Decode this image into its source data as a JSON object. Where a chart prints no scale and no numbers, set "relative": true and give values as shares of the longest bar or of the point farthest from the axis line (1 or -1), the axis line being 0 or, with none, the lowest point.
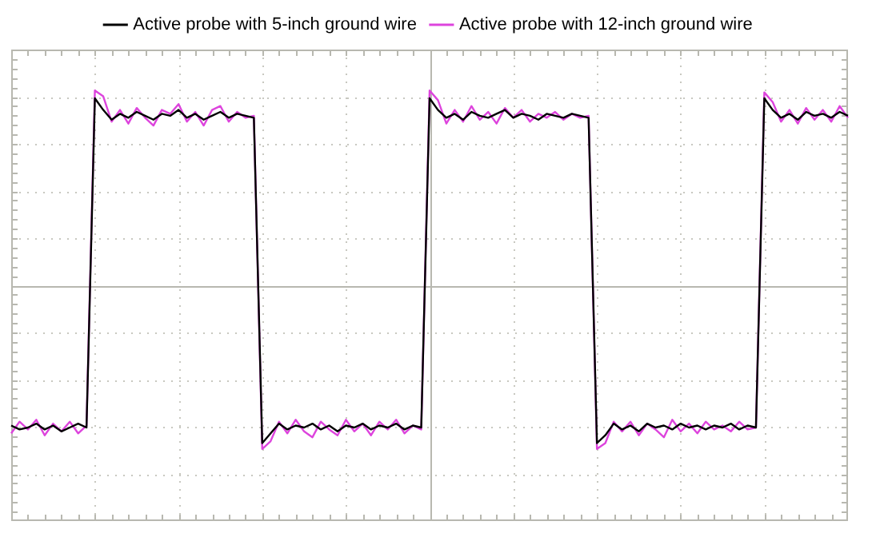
{
  "chart_data": {
    "type": "line",
    "relative": true,
    "grid": true,
    "legend": "top",
    "marker": "none",
    "line_style": "solid",
    "categories": [
      null,
      null,
      null,
      null,
      null,
      null,
      null,
      null,
      null,
      null,
      null,
      null,
      null,
      null,
      null,
      null,
      null,
      null,
      null,
      null,
      null,
      null,
      null,
      null,
      null,
      null,
      null,
      null,
      null,
      null,
      null,
      null,
      null,
      null,
      null,
      null,
      null,
      null,
      null,
      null,
      null,
      null,
      null,
      null,
      null,
      null,
      null,
      null,
      null,
      null,
      null,
      null,
      null,
      null,
      null,
      null,
      null,
      null,
      null,
      null,
      null,
      null,
      null,
      null,
      null,
      null,
      null,
      null,
      null,
      null,
      null,
      null,
      null,
      null,
      null,
      null,
      null,
      null,
      null,
      null,
      null,
      null,
      null,
      null,
      null,
      null,
      null,
      null,
      null,
      null,
      null,
      null,
      null,
      null,
      null,
      null,
      null,
      null,
      null,
      null,
      null
    ],
    "series": [
      {
        "name": "Active probe with 5-inch ground wire",
        "color": "#000000",
        "values": [
          -0.72,
          -0.74,
          -0.73,
          -0.71,
          -0.74,
          -0.72,
          -0.75,
          -0.73,
          -0.71,
          -0.73,
          0.96,
          0.9,
          0.85,
          0.88,
          0.86,
          0.89,
          0.87,
          0.85,
          0.88,
          0.87,
          0.9,
          0.86,
          0.88,
          0.85,
          0.87,
          0.89,
          0.86,
          0.88,
          0.87,
          0.86,
          -0.81,
          -0.76,
          -0.71,
          -0.74,
          -0.72,
          -0.73,
          -0.71,
          -0.74,
          -0.72,
          -0.75,
          -0.72,
          -0.73,
          -0.71,
          -0.74,
          -0.72,
          -0.73,
          -0.71,
          -0.74,
          -0.72,
          -0.73,
          0.96,
          0.9,
          0.86,
          0.88,
          0.85,
          0.89,
          0.87,
          0.86,
          0.88,
          0.9,
          0.86,
          0.88,
          0.87,
          0.85,
          0.88,
          0.87,
          0.86,
          0.88,
          0.87,
          0.86,
          -0.81,
          -0.77,
          -0.71,
          -0.74,
          -0.72,
          -0.75,
          -0.71,
          -0.73,
          -0.72,
          -0.74,
          -0.71,
          -0.73,
          -0.72,
          -0.74,
          -0.72,
          -0.73,
          -0.71,
          -0.74,
          -0.72,
          -0.73,
          0.96,
          0.9,
          0.86,
          0.88,
          0.85,
          0.89,
          0.87,
          0.88,
          0.86,
          0.89,
          0.87
        ]
      },
      {
        "name": "Active probe with 12-inch ground wire",
        "color": "#dd44dd",
        "values": [
          -0.76,
          -0.7,
          -0.74,
          -0.69,
          -0.77,
          -0.71,
          -0.75,
          -0.7,
          -0.76,
          -0.72,
          1.0,
          0.97,
          0.84,
          0.9,
          0.83,
          0.91,
          0.86,
          0.82,
          0.9,
          0.88,
          0.93,
          0.84,
          0.89,
          0.82,
          0.9,
          0.92,
          0.84,
          0.89,
          0.86,
          0.87,
          -0.84,
          -0.8,
          -0.7,
          -0.76,
          -0.69,
          -0.75,
          -0.78,
          -0.7,
          -0.74,
          -0.77,
          -0.69,
          -0.75,
          -0.71,
          -0.77,
          -0.7,
          -0.74,
          -0.69,
          -0.76,
          -0.72,
          -0.74,
          1.0,
          0.95,
          0.83,
          0.9,
          0.84,
          0.92,
          0.85,
          0.89,
          0.83,
          0.91,
          0.86,
          0.9,
          0.84,
          0.88,
          0.86,
          0.89,
          0.85,
          0.88,
          0.86,
          0.87,
          -0.84,
          -0.81,
          -0.7,
          -0.75,
          -0.7,
          -0.77,
          -0.71,
          -0.74,
          -0.78,
          -0.69,
          -0.75,
          -0.71,
          -0.76,
          -0.7,
          -0.74,
          -0.72,
          -0.75,
          -0.7,
          -0.74,
          -0.73,
          0.99,
          0.94,
          0.84,
          0.9,
          0.83,
          0.91,
          0.85,
          0.9,
          0.84,
          0.92,
          0.86
        ]
      }
    ]
  }
}
